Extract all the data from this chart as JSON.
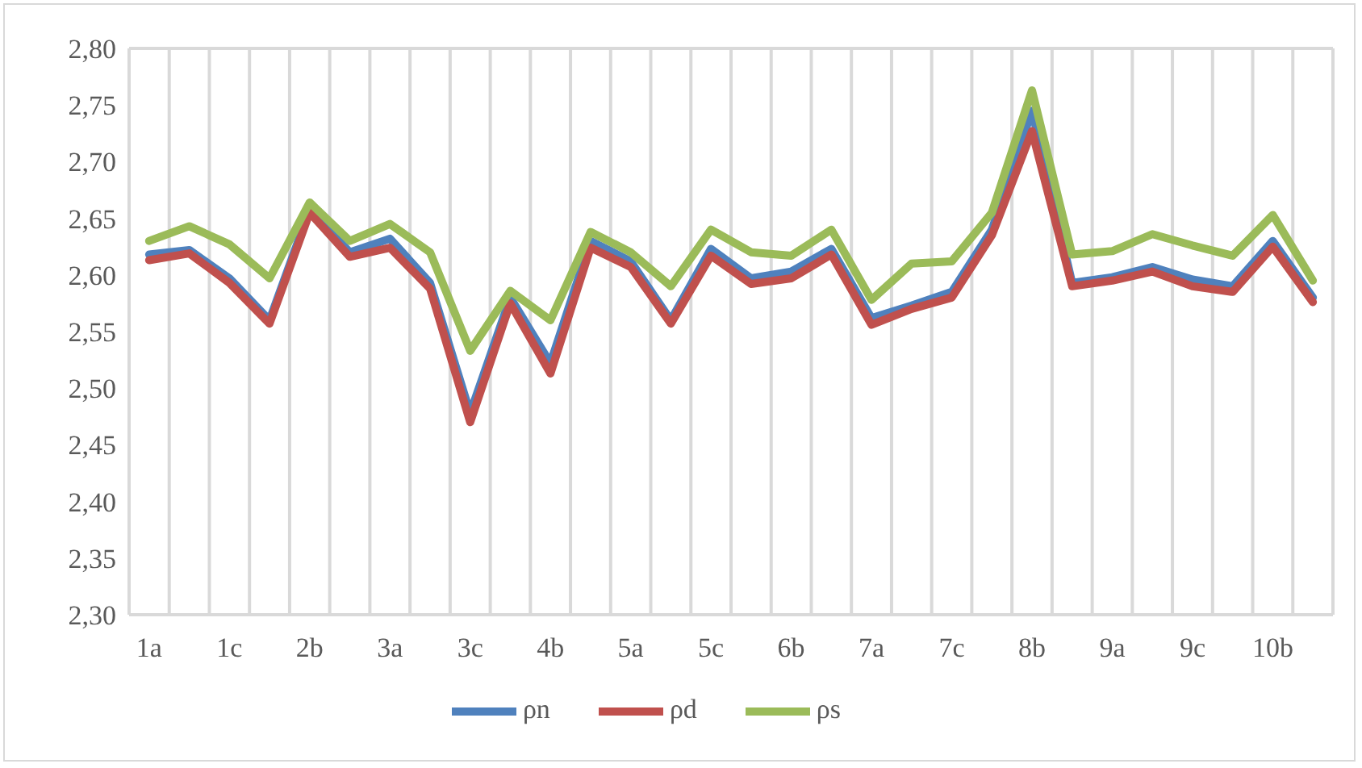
{
  "chart_data": {
    "type": "line",
    "categories": [
      "1a",
      null,
      "1c",
      null,
      "2b",
      null,
      "3a",
      null,
      "3c",
      null,
      "4b",
      null,
      "5a",
      null,
      "5c",
      null,
      "6b",
      null,
      "7a",
      null,
      "7c",
      null,
      "8b",
      null,
      "9a",
      null,
      "9c",
      null,
      "10b",
      null
    ],
    "series": [
      {
        "name": "ρn",
        "color": "#4f81bd",
        "values": [
          2.618,
          2.622,
          2.597,
          2.56,
          2.658,
          2.62,
          2.632,
          2.593,
          2.478,
          2.58,
          2.522,
          2.63,
          2.612,
          2.56,
          2.623,
          2.597,
          2.603,
          2.623,
          2.562,
          2.573,
          2.585,
          2.64,
          2.745,
          2.593,
          2.598,
          2.607,
          2.596,
          2.59,
          2.63,
          2.58
        ]
      },
      {
        "name": "ρd",
        "color": "#c0504d",
        "values": [
          2.613,
          2.619,
          2.593,
          2.557,
          2.655,
          2.616,
          2.624,
          2.588,
          2.47,
          2.575,
          2.513,
          2.624,
          2.607,
          2.557,
          2.617,
          2.592,
          2.597,
          2.618,
          2.556,
          2.57,
          2.58,
          2.635,
          2.727,
          2.59,
          2.595,
          2.603,
          2.59,
          2.585,
          2.625,
          2.576
        ]
      },
      {
        "name": "ρs",
        "color": "#9bbb59",
        "values": [
          2.63,
          2.643,
          2.627,
          2.597,
          2.664,
          2.63,
          2.645,
          2.62,
          2.533,
          2.586,
          2.56,
          2.638,
          2.62,
          2.59,
          2.64,
          2.62,
          2.617,
          2.64,
          2.578,
          2.61,
          2.612,
          2.655,
          2.763,
          2.618,
          2.621,
          2.636,
          2.626,
          2.617,
          2.653,
          2.595
        ]
      }
    ],
    "ylim": [
      2.3,
      2.8
    ],
    "yticks": [
      {
        "value": 2.3,
        "label": "2,30"
      },
      {
        "value": 2.35,
        "label": "2,35"
      },
      {
        "value": 2.4,
        "label": "2,40"
      },
      {
        "value": 2.45,
        "label": "2,45"
      },
      {
        "value": 2.5,
        "label": "2,50"
      },
      {
        "value": 2.55,
        "label": "2,55"
      },
      {
        "value": 2.6,
        "label": "2,60"
      },
      {
        "value": 2.65,
        "label": "2,65"
      },
      {
        "value": 2.7,
        "label": "2,70"
      },
      {
        "value": 2.75,
        "label": "2,75"
      },
      {
        "value": 2.8,
        "label": "2,80"
      }
    ],
    "grid": true,
    "legend": "bottom",
    "marker": "none",
    "line_style": "solid"
  }
}
